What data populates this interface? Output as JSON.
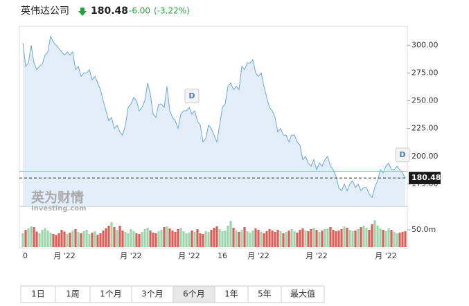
{
  "header": {
    "name": "英伟达公司",
    "price": "180.48",
    "change": "-6.00",
    "change_pct": "(-3.22%)"
  },
  "watermark": {
    "brand": "英为财情",
    "site": "Investing.com"
  },
  "buttons": [
    "1日",
    "1周",
    "1个月",
    "3个月",
    "6个月",
    "1年",
    "5年",
    "最大值"
  ],
  "selected_button": 4,
  "chart_data": [
    {
      "type": "line",
      "categories": [
        "0",
        null,
        null,
        null,
        null,
        null,
        null,
        null,
        null,
        null,
        null,
        null,
        null,
        null,
        null,
        "月 '22",
        null,
        null,
        null,
        null,
        null,
        null,
        null,
        null,
        null,
        null,
        null,
        null,
        null,
        null,
        null,
        null,
        null,
        null,
        null,
        null,
        null,
        null,
        null,
        "月 '22",
        null,
        null,
        null,
        null,
        null,
        null,
        null,
        null,
        null,
        null,
        null,
        null,
        null,
        null,
        null,
        null,
        null,
        null,
        null,
        null,
        "月 '22",
        null,
        null,
        null,
        null,
        null,
        null,
        null,
        null,
        null,
        null,
        null,
        "16",
        null,
        null,
        null,
        null,
        null,
        null,
        null,
        null,
        null,
        null,
        null,
        null,
        "月 '22",
        null,
        null,
        null,
        null,
        null,
        null,
        null,
        null,
        null,
        null,
        null,
        null,
        null,
        null,
        null,
        null,
        null,
        null,
        null,
        null,
        "月 '22",
        null,
        null,
        null,
        null,
        null,
        null,
        null,
        null,
        null,
        null,
        null,
        null,
        null,
        null,
        null,
        null,
        null,
        null,
        null,
        null,
        null,
        null,
        null,
        null,
        "月 '22",
        null,
        null,
        null,
        null,
        null,
        null,
        null
      ],
      "series": [
        {
          "name": "NVDA",
          "color": "#6fa6d6",
          "values": [
            302,
            281,
            284,
            300,
            284,
            278,
            281,
            283,
            291,
            294,
            308,
            303,
            300,
            297,
            294,
            291,
            294,
            291,
            294,
            278,
            281,
            272,
            275,
            275,
            278,
            269,
            272,
            266,
            260,
            250,
            241,
            232,
            235,
            225,
            228,
            222,
            219,
            228,
            244,
            247,
            253,
            250,
            241,
            244,
            250,
            266,
            256,
            238,
            235,
            247,
            247,
            244,
            263,
            241,
            235,
            232,
            225,
            238,
            241,
            241,
            244,
            238,
            241,
            232,
            228,
            213,
            216,
            228,
            225,
            219,
            213,
            228,
            244,
            247,
            263,
            266,
            260,
            263,
            260,
            281,
            278,
            284,
            284,
            287,
            275,
            272,
            275,
            263,
            253,
            244,
            241,
            235,
            222,
            225,
            219,
            219,
            213,
            219,
            219,
            213,
            210,
            197,
            200,
            194,
            191,
            197,
            188,
            194,
            191,
            197,
            200,
            191,
            188,
            182,
            172,
            169,
            175,
            169,
            175,
            178,
            172,
            175,
            169,
            172,
            172,
            166,
            163,
            172,
            178,
            188,
            185,
            191,
            194,
            188,
            188,
            191,
            188,
            185,
            180.48
          ]
        }
      ],
      "ylim": [
        155,
        317
      ],
      "yticks": [
        {
          "value": 175,
          "label": "175.00"
        },
        {
          "value": 200,
          "label": "200.00"
        },
        {
          "value": 225,
          "label": "225.00"
        },
        {
          "value": 250,
          "label": "250.00"
        },
        {
          "value": 275,
          "label": "275.00"
        },
        {
          "value": 300,
          "label": "300.00"
        }
      ],
      "current_price": 180.48,
      "previous_close": 186.48,
      "annotations": [
        {
          "label": "D",
          "index": 61
        },
        {
          "label": "D",
          "index": 137
        }
      ]
    },
    {
      "type": "bar",
      "up_color": "#9dd4a9",
      "down_color": "#d9605a",
      "values": [
        40,
        50,
        55,
        60,
        58,
        45,
        40,
        50,
        55,
        48,
        42,
        38,
        35,
        40,
        50,
        45,
        38,
        42,
        48,
        52,
        44,
        40,
        46,
        50,
        38,
        42,
        46,
        36,
        40,
        48,
        55,
        62,
        72,
        58,
        50,
        62,
        48,
        44,
        40,
        52,
        46,
        40,
        38,
        44,
        52,
        56,
        48,
        42,
        40,
        46,
        50,
        58,
        60,
        54,
        48,
        44,
        52,
        56,
        46,
        40,
        42,
        48,
        44,
        52,
        40,
        38,
        46,
        44,
        50,
        56,
        60,
        52,
        46,
        48,
        62,
        76,
        56,
        48,
        44,
        50,
        58,
        46,
        42,
        48,
        54,
        50,
        44,
        40,
        46,
        52,
        48,
        44,
        50,
        46,
        40,
        44,
        48,
        52,
        46,
        42,
        50,
        54,
        48,
        46,
        52,
        56,
        50,
        44,
        48,
        52,
        54,
        58,
        50,
        46,
        48,
        52,
        60,
        56,
        50,
        46,
        48,
        52,
        58,
        62,
        56,
        50,
        66,
        78,
        62,
        54,
        50,
        46,
        54,
        50,
        44,
        40,
        42,
        44,
        46
      ],
      "ylim": [
        0,
        114
      ],
      "yticks": [
        {
          "value": 50,
          "label": "50.0m"
        }
      ]
    }
  ]
}
